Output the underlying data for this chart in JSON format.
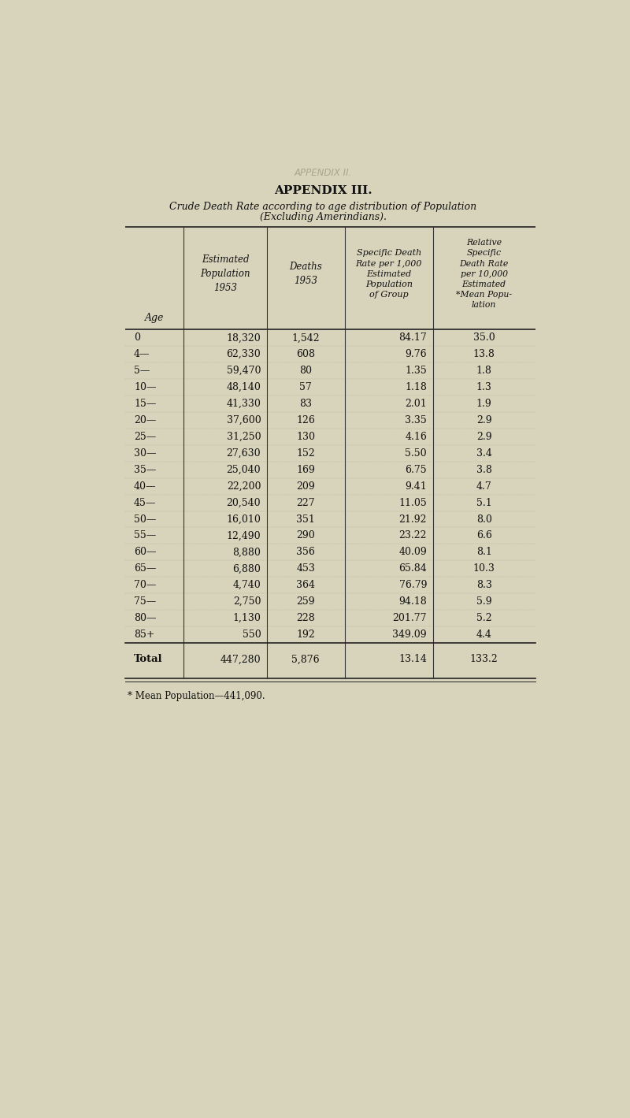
{
  "title": "APPENDIX III.",
  "subtitle_line1": "Crude Death Rate according to age distribution of Population",
  "subtitle_line2": "(Excluding Amerindians).",
  "back_title": "APPENDIX II.",
  "col_header_texts": [
    "Age",
    "Estimated\nPopulation\n1953",
    "Deaths\n1953",
    "Specific Death\nRate per 1,000\nEstimated\nPopulation\nof Group",
    "Relative\nSpecific\nDeath Rate\nper 10,000\nEstimated\n*Mean Popu-\nlation"
  ],
  "rows": [
    [
      "0",
      "18,320",
      "1,542",
      "84.17",
      "35.0"
    ],
    [
      "4—",
      "62,330",
      "608",
      "9.76",
      "13.8"
    ],
    [
      "5—",
      "59,470",
      "80",
      "1.35",
      "1.8"
    ],
    [
      "10—",
      "48,140",
      "57",
      "1.18",
      "1.3"
    ],
    [
      "15—",
      "41,330",
      "83",
      "2.01",
      "1.9"
    ],
    [
      "20—",
      "37,600",
      "126",
      "3.35",
      "2.9"
    ],
    [
      "25—",
      "31,250",
      "130",
      "4.16",
      "2.9"
    ],
    [
      "30—",
      "27,630",
      "152",
      "5.50",
      "3.4"
    ],
    [
      "35—",
      "25,040",
      "169",
      "6.75",
      "3.8"
    ],
    [
      "40—",
      "22,200",
      "209",
      "9.41",
      "4.7"
    ],
    [
      "45—",
      "20,540",
      "227",
      "11.05",
      "5.1"
    ],
    [
      "50—",
      "16,010",
      "351",
      "21.92",
      "8.0"
    ],
    [
      "55—",
      "12,490",
      "290",
      "23.22",
      "6.6"
    ],
    [
      "60—",
      "8,880",
      "356",
      "40.09",
      "8.1"
    ],
    [
      "65—",
      "6,880",
      "453",
      "65.84",
      "10.3"
    ],
    [
      "70—",
      "4,740",
      "364",
      "76.79",
      "8.3"
    ],
    [
      "75—",
      "2,750",
      "259",
      "94.18",
      "5.9"
    ],
    [
      "80—",
      "1,130",
      "228",
      "201.77",
      "5.2"
    ],
    [
      "85+",
      "550",
      "192",
      "349.09",
      "4.4"
    ]
  ],
  "total_row": [
    "Total",
    "447,280",
    "5,876",
    "13.14",
    "133.2"
  ],
  "footnote": "* Mean Population—441,090.",
  "bg_color": "#d8d4bc",
  "text_color": "#111111",
  "fig_width": 8.0,
  "fig_height": 14.19
}
